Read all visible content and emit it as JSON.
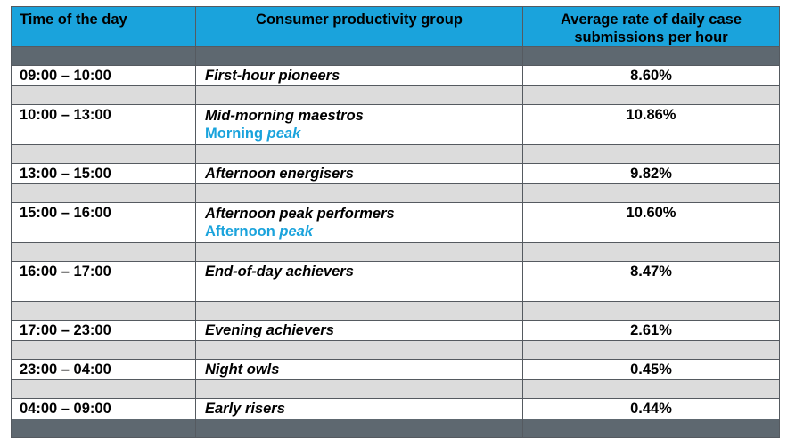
{
  "header": {
    "col1": "Time of the day",
    "col2": "Consumer productivity group",
    "col3_line1": "Average rate of daily case",
    "col3_line2": "submissions per hour"
  },
  "rows": [
    {
      "time": "09:00 – 10:00",
      "group": "First-hour pioneers",
      "rate": "8.60%"
    },
    {
      "time": "10:00 – 13:00",
      "group": "Mid-morning maestros",
      "sub_prefix": "Morning",
      "sub_peak": "peak",
      "rate": "10.86%"
    },
    {
      "time": "13:00 – 15:00",
      "group": "Afternoon energisers",
      "rate": "9.82%"
    },
    {
      "time": "15:00 – 16:00",
      "group": "Afternoon peak performers",
      "sub_prefix": "Afternoon",
      "sub_peak": "peak",
      "rate": "10.60%"
    },
    {
      "time": "16:00 – 17:00",
      "group": "End-of-day achievers",
      "rate": "8.47%"
    },
    {
      "time": "17:00 – 23:00",
      "group": "Evening achievers",
      "rate": "2.61%"
    },
    {
      "time": "23:00 – 04:00",
      "group": "Night owls",
      "rate": "0.45%"
    },
    {
      "time": "04:00 – 09:00",
      "group": "Early risers",
      "rate": "0.44%"
    }
  ],
  "colors": {
    "header_bg": "#1aa3dc",
    "dark_band": "#5e6870",
    "light_band": "#dcdcdc",
    "peak_text": "#1aa3dc"
  }
}
